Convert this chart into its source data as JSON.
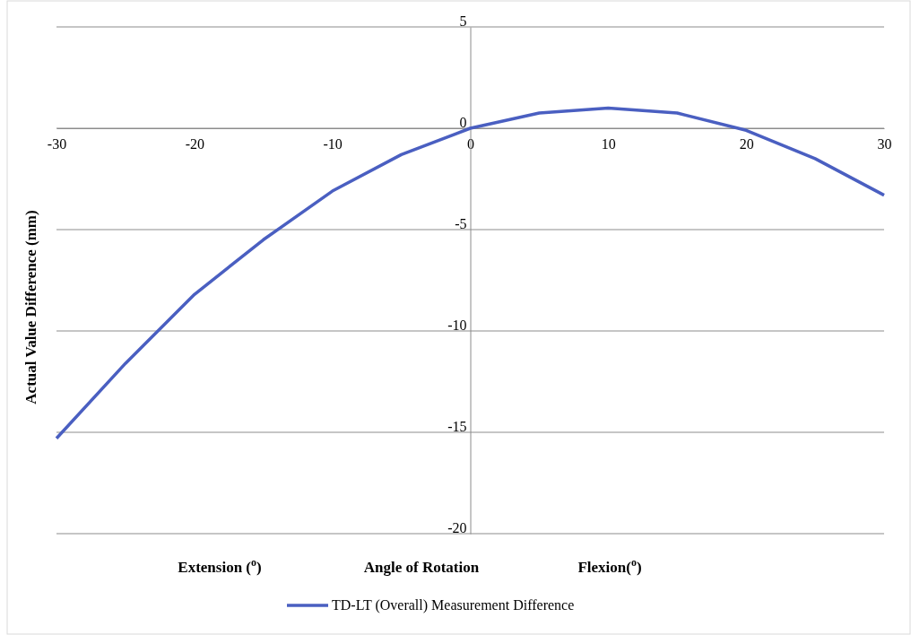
{
  "chart_data": {
    "type": "line",
    "xlabel": "Angle of Rotation",
    "ylabel": "Actual  Value Difference  (mm)",
    "annotations": [
      "Extension ($^{o}$)",
      "Flexion($^{o}$)"
    ],
    "x": [
      -30,
      -25,
      -20,
      -15,
      -10,
      -5,
      0,
      5,
      10,
      15,
      20,
      25,
      30
    ],
    "series": [
      {
        "name": "TD-LT (Overall)  Measurement Difference",
        "color": "#4a5fc1",
        "values": [
          -15.3,
          -11.6,
          -8.2,
          -5.5,
          -3.1,
          -1.3,
          0,
          0.75,
          1.0,
          0.75,
          -0.1,
          -1.5,
          -3.3
        ]
      }
    ],
    "xlim": [
      -30,
      30
    ],
    "xticks": [
      -30,
      -20,
      -10,
      0,
      10,
      20,
      30
    ],
    "ylim": [
      -20,
      5
    ],
    "yticks": [
      -20,
      -15,
      -10,
      -5,
      0,
      5
    ],
    "grid": "y",
    "legend": "bottom",
    "marker": "none",
    "line_style": "solid"
  }
}
